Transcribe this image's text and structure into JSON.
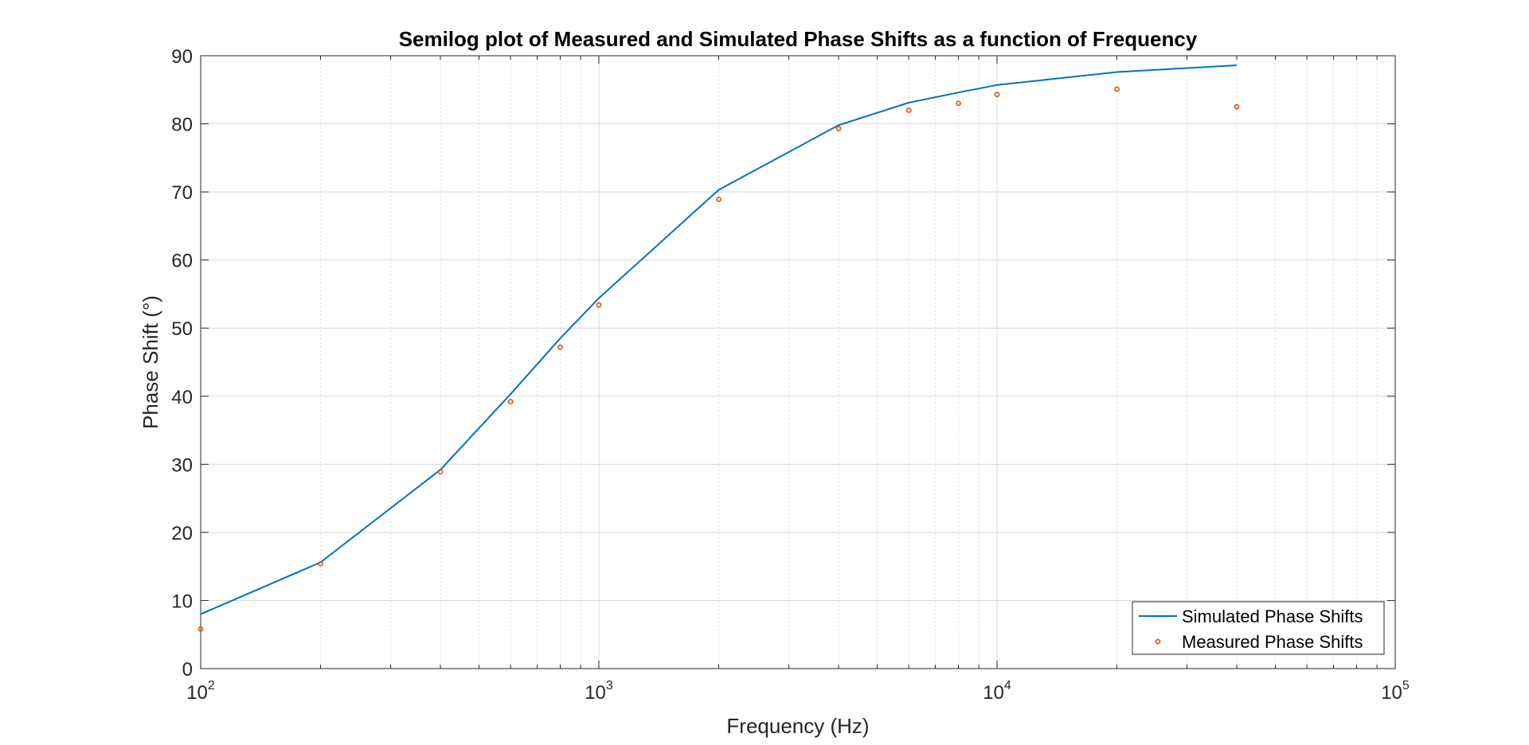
{
  "chart_data": {
    "type": "line",
    "title": "Semilog plot of Measured and Simulated Phase Shifts as a function of Frequency",
    "xlabel": "Frequency (Hz)",
    "ylabel": "Phase Shift (°)",
    "xscale": "log",
    "xlim": [
      100,
      100000
    ],
    "ylim": [
      0,
      90
    ],
    "grid": true,
    "legend_position": "bottom-right",
    "x_ticks": [
      {
        "base": "10",
        "exp": "2",
        "value": 100
      },
      {
        "base": "10",
        "exp": "3",
        "value": 1000
      },
      {
        "base": "10",
        "exp": "4",
        "value": 10000
      },
      {
        "base": "10",
        "exp": "5",
        "value": 100000
      }
    ],
    "y_ticks": [
      "0",
      "10",
      "20",
      "30",
      "40",
      "50",
      "60",
      "70",
      "80",
      "90"
    ],
    "series": [
      {
        "name": "Simulated Phase Shifts",
        "style": "line",
        "color": "#0072BD",
        "x": [
          100,
          200,
          400,
          600,
          800,
          1000,
          2000,
          4000,
          6000,
          8000,
          10000,
          20000,
          40000
        ],
        "y": [
          8.0,
          15.6,
          29.2,
          40.3,
          48.5,
          54.4,
          70.3,
          79.8,
          83.1,
          84.6,
          85.7,
          87.6,
          88.6
        ]
      },
      {
        "name": "Measured Phase Shifts",
        "style": "marker",
        "color": "#D95319",
        "x": [
          100,
          200,
          400,
          600,
          800,
          1000,
          2000,
          4000,
          6000,
          8000,
          10000,
          20000,
          40000
        ],
        "y": [
          5.8,
          15.4,
          28.9,
          39.2,
          47.2,
          53.4,
          68.9,
          79.3,
          82.0,
          83.0,
          84.3,
          85.1,
          82.5
        ]
      }
    ]
  }
}
